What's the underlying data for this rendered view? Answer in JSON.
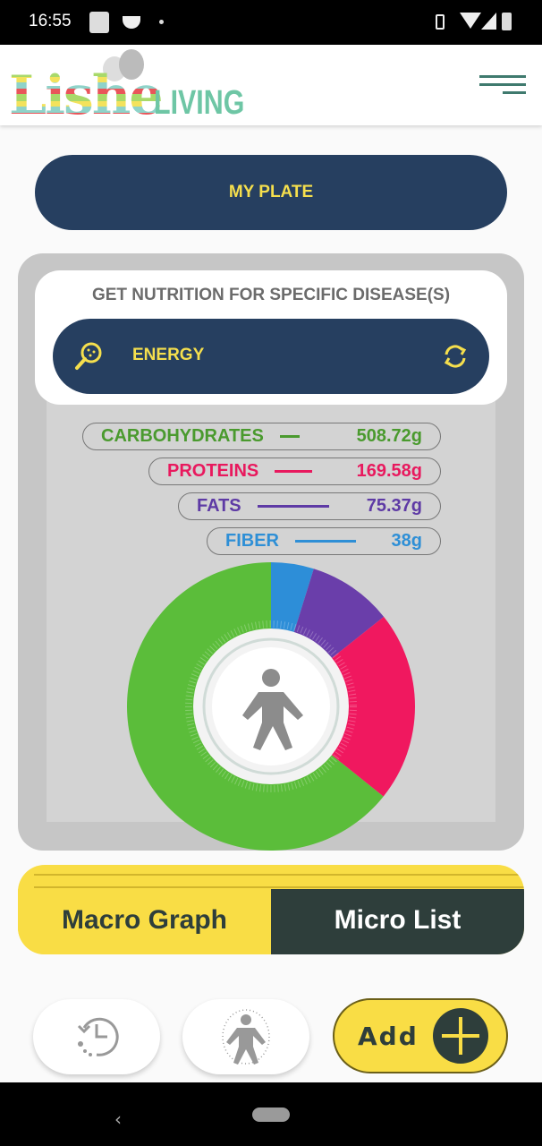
{
  "status_bar": {
    "time": "16:55"
  },
  "header": {
    "logo_main": "Lishe",
    "logo_sub": "LIVING",
    "menu_icon": "hamburger-icon"
  },
  "my_plate": {
    "label": "MY PLATE"
  },
  "disease": {
    "title": "GET NUTRITION FOR SPECIFIC DISEASE(S)",
    "selected": "ENERGY",
    "search_icon": "magnifier-icon",
    "refresh_icon": "refresh-icon"
  },
  "macros": [
    {
      "name": "CARBOHYDRATES",
      "value": "508.72g",
      "amount": 508.72,
      "color": "#4a9a2e",
      "slice_color": "#5bbd3a"
    },
    {
      "name": "PROTEINS",
      "value": "169.58g",
      "amount": 169.58,
      "color": "#e8195e",
      "slice_color": "#f0185f"
    },
    {
      "name": "FATS",
      "value": "75.37g",
      "amount": 75.37,
      "color": "#5e3aa5",
      "slice_color": "#6a3eaa"
    },
    {
      "name": "FIBER",
      "value": "38g",
      "amount": 38,
      "color": "#2e8fd6",
      "slice_color": "#2d8ed8"
    }
  ],
  "tabs": {
    "macro": "Macro Graph",
    "micro": "Micro List",
    "active": "macro"
  },
  "bottom": {
    "add_label": "Add"
  },
  "colors": {
    "navy": "#263f60",
    "yellow": "#f9dd45",
    "dark_green": "#2e3e3b"
  }
}
